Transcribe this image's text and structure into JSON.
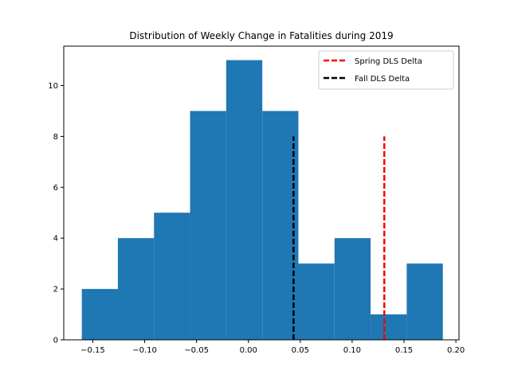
{
  "chart_data": {
    "type": "bar",
    "title": "Distribution of Weekly Change in Fatalities during 2019",
    "xlabel": "",
    "ylabel": "",
    "xlim": [
      -0.178,
      0.203
    ],
    "ylim": [
      0,
      11.55
    ],
    "bin_edges": [
      -0.1606,
      -0.1258,
      -0.091,
      -0.0562,
      -0.0214,
      0.0134,
      0.0482,
      0.083,
      0.1178,
      0.1526,
      0.1874
    ],
    "counts": [
      2,
      4,
      5,
      9,
      11,
      9,
      3,
      4,
      1,
      3
    ],
    "bar_color": "#1f77b4",
    "x_ticks": [
      -0.15,
      -0.1,
      -0.05,
      0.0,
      0.05,
      0.1,
      0.15,
      0.2
    ],
    "x_tick_labels": [
      "−0.15",
      "−0.10",
      "−0.05",
      "0.00",
      "0.05",
      "0.10",
      "0.15",
      "0.20"
    ],
    "y_ticks": [
      0,
      2,
      4,
      6,
      8,
      10
    ],
    "y_tick_labels": [
      "0",
      "2",
      "4",
      "6",
      "8",
      "10"
    ],
    "vlines": [
      {
        "name": "Spring DLS Delta",
        "x": 0.131,
        "ymax": 8,
        "color": "#ff0000",
        "dash": "dashed"
      },
      {
        "name": "Fall DLS Delta",
        "x": 0.0435,
        "ymax": 8,
        "color": "#000000",
        "dash": "dashed"
      }
    ],
    "legend": {
      "placement": "top-right",
      "entries": [
        "Spring DLS Delta",
        "Fall DLS Delta"
      ]
    },
    "grid": false
  }
}
